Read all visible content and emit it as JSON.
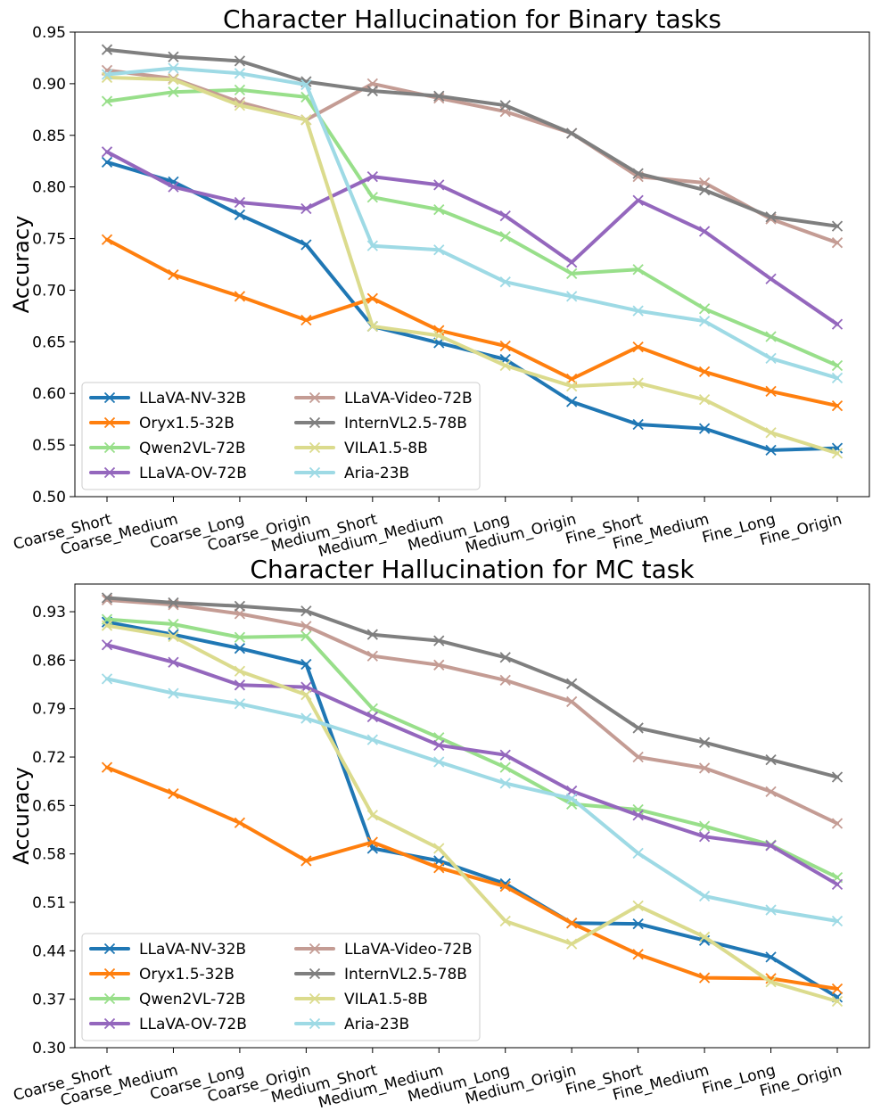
{
  "chart_data": [
    {
      "type": "line",
      "title": "Character Hallucination for Binary tasks",
      "xlabel": "",
      "ylabel": "Accuracy",
      "ylim": [
        0.5,
        0.95
      ],
      "yticks": [
        "0.50",
        "0.55",
        "0.60",
        "0.65",
        "0.70",
        "0.75",
        "0.80",
        "0.85",
        "0.90",
        "0.95"
      ],
      "yticks_values": [
        0.5,
        0.55,
        0.6,
        0.65,
        0.7,
        0.75,
        0.8,
        0.85,
        0.9,
        0.95
      ],
      "categories": [
        "Coarse_Short",
        "Coarse_Medium",
        "Coarse_Long",
        "Coarse_Origin",
        "Medium_Short",
        "Medium_Medium",
        "Medium_Long",
        "Medium_Origin",
        "Fine_Short",
        "Fine_Medium",
        "Fine_Long",
        "Fine_Origin"
      ],
      "legend_position": "lower-left",
      "series": [
        {
          "name": "LLaVA-NV-32B",
          "color": "#1f77b4",
          "values": [
            0.824,
            0.805,
            0.773,
            0.744,
            0.665,
            0.649,
            0.633,
            0.592,
            0.57,
            0.566,
            0.545,
            0.547
          ]
        },
        {
          "name": "Oryx1.5-32B",
          "color": "#ff7f0e",
          "values": [
            0.749,
            0.715,
            0.694,
            0.671,
            0.692,
            0.661,
            0.646,
            0.614,
            0.645,
            0.621,
            0.602,
            0.588
          ]
        },
        {
          "name": "Qwen2VL-72B",
          "color": "#98df8a",
          "values": [
            0.883,
            0.892,
            0.894,
            0.887,
            0.79,
            0.778,
            0.752,
            0.716,
            0.72,
            0.682,
            0.655,
            0.627
          ]
        },
        {
          "name": "LLaVA-OV-72B",
          "color": "#9467bd",
          "values": [
            0.834,
            0.8,
            0.785,
            0.779,
            0.81,
            0.802,
            0.772,
            0.727,
            0.787,
            0.757,
            0.711,
            0.667
          ]
        },
        {
          "name": "LLaVA-Video-72B",
          "color": "#c49c94",
          "values": [
            0.913,
            0.905,
            0.882,
            0.865,
            0.9,
            0.886,
            0.873,
            0.852,
            0.81,
            0.804,
            0.769,
            0.746
          ]
        },
        {
          "name": "InternVL2.5-78B",
          "color": "#7f7f7f",
          "values": [
            0.933,
            0.926,
            0.922,
            0.902,
            0.893,
            0.888,
            0.879,
            0.852,
            0.813,
            0.797,
            0.771,
            0.762
          ]
        },
        {
          "name": "VILA1.5-8B",
          "color": "#dbdb8d",
          "values": [
            0.906,
            0.904,
            0.879,
            0.865,
            0.665,
            0.656,
            0.627,
            0.607,
            0.61,
            0.594,
            0.562,
            0.542
          ]
        },
        {
          "name": "Aria-23B",
          "color": "#9edae5",
          "values": [
            0.909,
            0.915,
            0.91,
            0.899,
            0.743,
            0.739,
            0.708,
            0.694,
            0.68,
            0.67,
            0.634,
            0.615
          ]
        }
      ]
    },
    {
      "type": "line",
      "title": "Character Hallucination for MC task",
      "xlabel": "",
      "ylabel": "Accuracy",
      "ylim": [
        0.3,
        0.97
      ],
      "yticks": [
        "0.30",
        "0.37",
        "0.44",
        "0.51",
        "0.58",
        "0.65",
        "0.72",
        "0.79",
        "0.86",
        "0.93"
      ],
      "yticks_values": [
        0.3,
        0.37,
        0.44,
        0.51,
        0.58,
        0.65,
        0.72,
        0.79,
        0.86,
        0.93
      ],
      "categories": [
        "Coarse_Short",
        "Coarse_Medium",
        "Coarse_Long",
        "Coarse_Origin",
        "Medium_Short",
        "Medium_Medium",
        "Medium_Long",
        "Medium_Origin",
        "Fine_Short",
        "Fine_Medium",
        "Fine_Long",
        "Fine_Origin"
      ],
      "legend_position": "lower-left",
      "series": [
        {
          "name": "LLaVA-NV-32B",
          "color": "#1f77b4",
          "values": [
            0.915,
            0.897,
            0.877,
            0.854,
            0.588,
            0.57,
            0.537,
            0.48,
            0.479,
            0.455,
            0.431,
            0.373
          ]
        },
        {
          "name": "Oryx1.5-32B",
          "color": "#ff7f0e",
          "values": [
            0.705,
            0.667,
            0.625,
            0.57,
            0.597,
            0.56,
            0.533,
            0.48,
            0.435,
            0.401,
            0.4,
            0.385
          ]
        },
        {
          "name": "Qwen2VL-72B",
          "color": "#98df8a",
          "values": [
            0.919,
            0.912,
            0.893,
            0.895,
            0.79,
            0.748,
            0.705,
            0.652,
            0.644,
            0.62,
            0.593,
            0.546
          ]
        },
        {
          "name": "LLaVA-OV-72B",
          "color": "#9467bd",
          "values": [
            0.882,
            0.857,
            0.824,
            0.821,
            0.778,
            0.737,
            0.723,
            0.671,
            0.636,
            0.605,
            0.592,
            0.536
          ]
        },
        {
          "name": "LLaVA-Video-72B",
          "color": "#c49c94",
          "values": [
            0.947,
            0.94,
            0.927,
            0.909,
            0.866,
            0.853,
            0.831,
            0.8,
            0.72,
            0.704,
            0.67,
            0.624
          ]
        },
        {
          "name": "InternVL2.5-78B",
          "color": "#7f7f7f",
          "values": [
            0.95,
            0.943,
            0.938,
            0.931,
            0.897,
            0.888,
            0.864,
            0.826,
            0.762,
            0.741,
            0.716,
            0.691
          ]
        },
        {
          "name": "VILA1.5-8B",
          "color": "#dbdb8d",
          "values": [
            0.91,
            0.894,
            0.844,
            0.81,
            0.636,
            0.588,
            0.483,
            0.45,
            0.505,
            0.46,
            0.395,
            0.367
          ]
        },
        {
          "name": "Aria-23B",
          "color": "#9edae5",
          "values": [
            0.833,
            0.812,
            0.797,
            0.776,
            0.745,
            0.713,
            0.682,
            0.66,
            0.581,
            0.519,
            0.499,
            0.483
          ]
        }
      ]
    }
  ]
}
